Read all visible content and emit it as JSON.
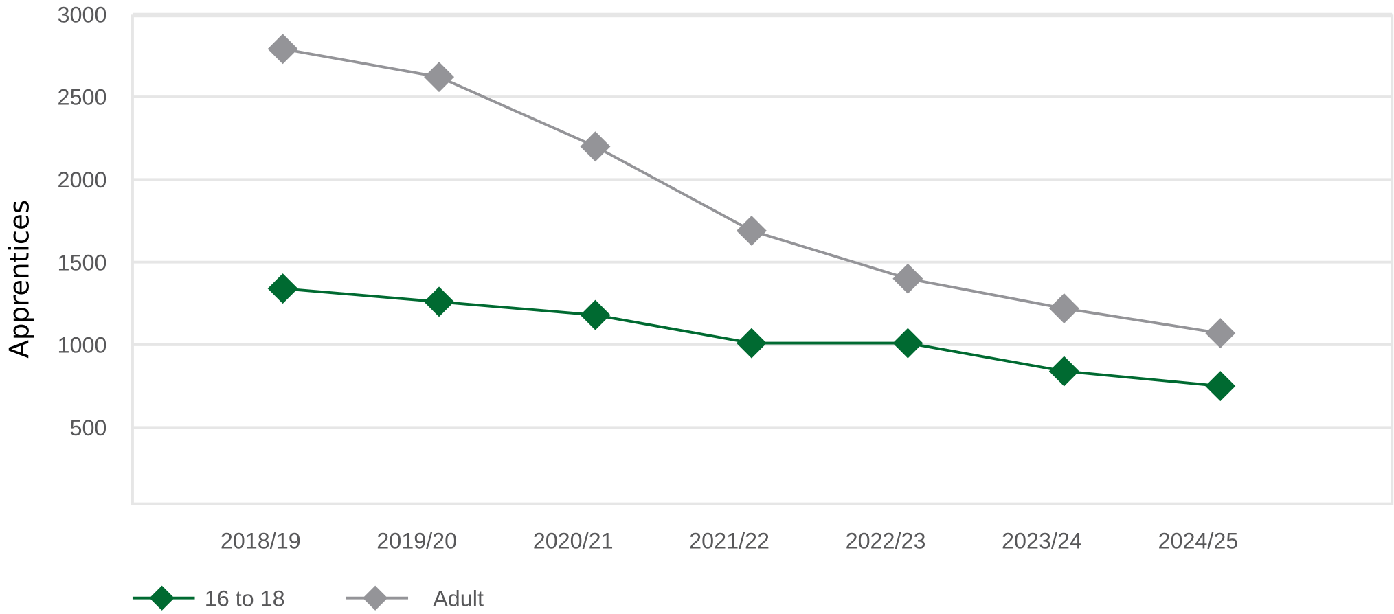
{
  "chart_data": {
    "type": "line",
    "title": "",
    "xlabel": "",
    "ylabel": "Apprentices",
    "categories": [
      "2018/19",
      "2019/20",
      "2020/21",
      "2021/22",
      "2022/23",
      "2023/24",
      "2024/25"
    ],
    "yticks": [
      500,
      1000,
      1500,
      2000,
      2500,
      3000
    ],
    "ylim": [
      0,
      3000
    ],
    "grid": true,
    "legend_position": "bottom-left",
    "series": [
      {
        "name": "16 to 18",
        "color": "#006a31",
        "marker": "diamond",
        "values": [
          1340,
          1260,
          1180,
          1010,
          1010,
          840,
          750
        ]
      },
      {
        "name": "Adult",
        "color": "#949498",
        "marker": "diamond",
        "values": [
          2790,
          2620,
          2200,
          1690,
          1400,
          1220,
          1070
        ]
      }
    ]
  }
}
